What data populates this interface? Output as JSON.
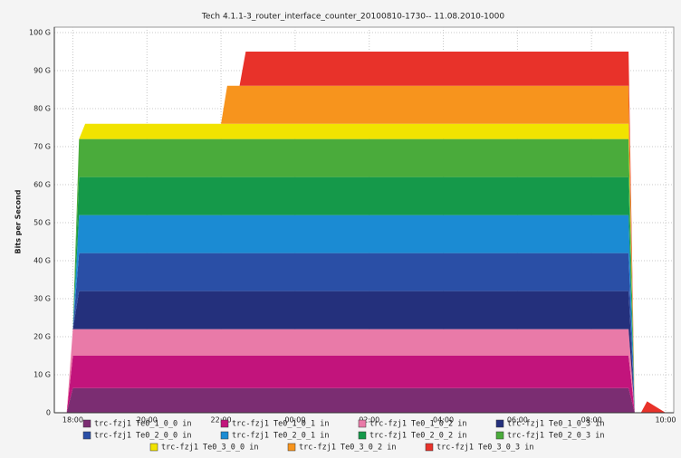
{
  "chart_data": {
    "type": "stacked_area",
    "title": "Tech 4.1.1-3_router_interface_counter_20100810-1730-- 11.08.2010-1000",
    "y_label": "Bits per Second",
    "x": [
      "17:30",
      "17:50",
      "18:00",
      "18:10",
      "18:20",
      "18:30",
      "22:00",
      "22:10",
      "22:30",
      "22:40",
      "08:45",
      "09:00",
      "09:10",
      "09:20",
      "09:30",
      "10:00"
    ],
    "xlim": [
      "17:30",
      "10:00"
    ],
    "xticks": [
      "18:00",
      "20:00",
      "22:00",
      "00:00",
      "02:00",
      "04:00",
      "06:00",
      "08:00",
      "10:00"
    ],
    "ylim": [
      0,
      100
    ],
    "yticks": [
      {
        "value": 0,
        "label": "0"
      },
      {
        "value": 10,
        "label": "10 G"
      },
      {
        "value": 20,
        "label": "20 G"
      },
      {
        "value": 30,
        "label": "30 G"
      },
      {
        "value": 40,
        "label": "40 G"
      },
      {
        "value": 50,
        "label": "50 G"
      },
      {
        "value": 60,
        "label": "60 G"
      },
      {
        "value": 70,
        "label": "70 G"
      },
      {
        "value": 80,
        "label": "80 G"
      },
      {
        "value": 90,
        "label": "90 G"
      },
      {
        "value": 100,
        "label": "100 G"
      }
    ],
    "grid": true,
    "series": [
      {
        "name": "trc-fzj1 Te0_1_0_0 in",
        "color": "#7b2d72",
        "values": [
          0,
          0,
          6.5,
          6.5,
          6.5,
          6.5,
          6.5,
          6.5,
          6.5,
          6.5,
          6.5,
          6.5,
          0,
          0,
          0,
          0
        ]
      },
      {
        "name": "trc-fzj1 Te0_1_0_1 in",
        "color": "#c2147c",
        "values": [
          0,
          0,
          8.5,
          8.5,
          8.5,
          8.5,
          8.5,
          8.5,
          8.5,
          8.5,
          8.5,
          8.5,
          0,
          0,
          0,
          0
        ]
      },
      {
        "name": "trc-fzj1 Te0_1_0_2 in",
        "color": "#e97aa8",
        "values": [
          0,
          0,
          7,
          7,
          7,
          7,
          7,
          7,
          7,
          7,
          7,
          7,
          0,
          0,
          0,
          0
        ]
      },
      {
        "name": "trc-fzj1 Te0_1_0_3 in",
        "color": "#24307c",
        "values": [
          0,
          0,
          0,
          10,
          10,
          10,
          10,
          10,
          10,
          10,
          10,
          10,
          0,
          0,
          0,
          0
        ]
      },
      {
        "name": "trc-fzj1 Te0_2_0_0 in",
        "color": "#2a4fa6",
        "values": [
          0,
          0,
          0,
          10,
          10,
          10,
          10,
          10,
          10,
          10,
          10,
          10,
          0,
          0,
          0,
          0
        ]
      },
      {
        "name": "trc-fzj1 Te0_2_0_1 in",
        "color": "#1b8bd3",
        "values": [
          0,
          0,
          0,
          10,
          10,
          10,
          10,
          10,
          10,
          10,
          10,
          10,
          0,
          0,
          0,
          0
        ]
      },
      {
        "name": "trc-fzj1 Te0_2_0_2 in",
        "color": "#15994a",
        "values": [
          0,
          0,
          0,
          10,
          10,
          10,
          10,
          10,
          10,
          10,
          10,
          10,
          0,
          0,
          0,
          0
        ]
      },
      {
        "name": "trc-fzj1 Te0_2_0_3 in",
        "color": "#4aab3b",
        "values": [
          0,
          0,
          0,
          10,
          10,
          10,
          10,
          10,
          10,
          10,
          10,
          10,
          0,
          0,
          0,
          0
        ]
      },
      {
        "name": "trc-fzj1 Te0_3_0_0 in",
        "color": "#f1e300",
        "values": [
          0,
          0,
          0,
          0,
          4,
          4,
          4,
          4,
          4,
          4,
          4,
          4,
          0,
          0,
          0,
          0
        ]
      },
      {
        "name": "trc-fzj1 Te0_3_0_2 in",
        "color": "#f7941d",
        "values": [
          0,
          0,
          0,
          0,
          0,
          0,
          0,
          10,
          10,
          10,
          10,
          10,
          0,
          0,
          0,
          0
        ]
      },
      {
        "name": "trc-fzj1 Te0_3_0_3 in",
        "color": "#e8322a",
        "values": [
          0,
          0,
          0,
          0,
          0,
          0,
          0,
          0,
          0,
          9,
          9,
          9,
          0,
          0,
          3,
          0
        ]
      }
    ]
  }
}
